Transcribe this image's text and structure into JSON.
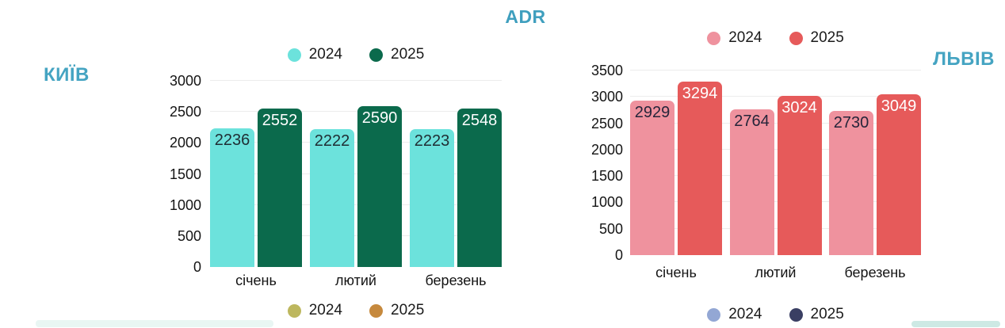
{
  "page_title": "ADR",
  "accent_color": "#3F9FBE",
  "chart_data": [
    {
      "type": "bar",
      "title": "КИЇВ",
      "title_side": "left",
      "title_color": "#45A4C2",
      "categories": [
        "січень",
        "лютий",
        "березень"
      ],
      "series": [
        {
          "name": "2024",
          "color": "#6CE2DC",
          "label_color": "#1F2D33",
          "values": [
            2236,
            2222,
            2223
          ]
        },
        {
          "name": "2025",
          "color": "#0B6A4C",
          "label_color": "#FFFFFF",
          "values": [
            2552,
            2590,
            2548
          ]
        }
      ],
      "ylim": [
        0,
        3000
      ],
      "yticks": [
        0,
        500,
        1000,
        1500,
        2000,
        2500,
        3000
      ],
      "grid": true,
      "legend_position": "top",
      "legend": [
        {
          "label": "2024",
          "color": "#6CE2DC"
        },
        {
          "label": "2025",
          "color": "#0B6A4C"
        }
      ],
      "bottom_legend": [
        {
          "label": "2024",
          "color": "#BDB75E"
        },
        {
          "label": "2025",
          "color": "#C6893D"
        }
      ]
    },
    {
      "type": "bar",
      "title": "ЛЬВІВ",
      "title_side": "right",
      "title_color": "#45A4C2",
      "categories": [
        "січень",
        "лютий",
        "березень"
      ],
      "series": [
        {
          "name": "2024",
          "color": "#EF929E",
          "label_color": "#26253A",
          "values": [
            2929,
            2764,
            2730
          ]
        },
        {
          "name": "2025",
          "color": "#E65A5A",
          "label_color": "#FFFFFF",
          "values": [
            3294,
            3024,
            3049
          ]
        }
      ],
      "ylim": [
        0,
        3500
      ],
      "yticks": [
        0,
        500,
        1000,
        1500,
        2000,
        2500,
        3000,
        3500
      ],
      "grid": true,
      "legend_position": "top",
      "legend": [
        {
          "label": "2024",
          "color": "#EF929E"
        },
        {
          "label": "2025",
          "color": "#E65A5A"
        }
      ],
      "bottom_legend": [
        {
          "label": "2024",
          "color": "#93A7D4"
        },
        {
          "label": "2025",
          "color": "#3A3F63"
        }
      ]
    }
  ]
}
